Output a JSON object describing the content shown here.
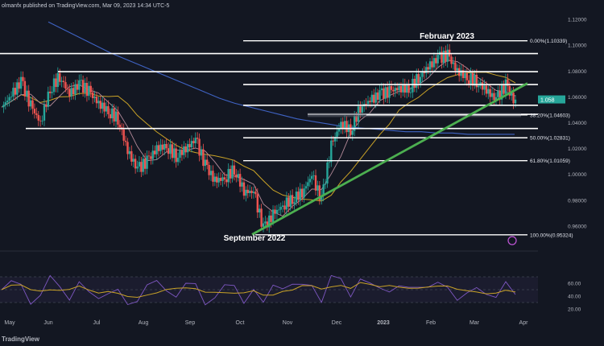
{
  "header": {
    "published_text": "olmanfx published on TradingView.com, Mar 09, 2023 14:34 UTC-5"
  },
  "footer": {
    "brand": "TradingView"
  },
  "colors": {
    "background": "#131722",
    "bull": "#26a69a",
    "bear": "#ef5350",
    "ma_pink": "#b58b9a",
    "ma_yellow": "#c9a227",
    "ma_blue": "#3f63c4",
    "trendline": "#4caf50",
    "level_line": "#ffffff",
    "rsi_line": "#7e57c2",
    "rsi_signal": "#c9a227"
  },
  "chart_data": {
    "type": "candlestick",
    "instrument_currency": "",
    "price_axis": {
      "ticks": [
        "1.12000",
        "1.10000",
        "1.08000",
        "1.06000",
        "1.04000",
        "1.02000",
        "1.00000",
        "0.98000",
        "0.96000"
      ],
      "current_price_label": "1.058",
      "ylim": [
        0.945,
        1.125
      ]
    },
    "time_axis": {
      "ticks": [
        "May",
        "Jun",
        "Jul",
        "Aug",
        "Sep",
        "Oct",
        "Nov",
        "Dec",
        "2023",
        "Feb",
        "Mar",
        "Apr"
      ]
    },
    "annotations": {
      "high_label": "February 2023",
      "low_label": "September 2022"
    },
    "fib_levels": [
      {
        "label": "0.00%(1.10339)",
        "value": 1.10339
      },
      {
        "label": "38.20%(1.04603)",
        "value": 1.04603
      },
      {
        "label": "50.00%(1.02831)",
        "value": 1.02831
      },
      {
        "label": "61.80%(1.01059)",
        "value": 1.01059
      },
      {
        "label": "100.00%(0.95324)",
        "value": 0.95324
      }
    ],
    "horizontal_levels": [
      1.0935,
      1.0795,
      1.0695,
      1.0535,
      1.0465,
      1.0355
    ],
    "trendline": {
      "from": {
        "date": "2022-09-28",
        "price": 0.9535
      },
      "to": {
        "date": "2023-03-20",
        "price": 1.0705
      }
    },
    "close_series_weekly": [
      1.052,
      1.061,
      1.072,
      1.053,
      1.04,
      1.066,
      1.076,
      1.062,
      1.07,
      1.064,
      1.055,
      1.049,
      1.043,
      1.018,
      1.004,
      1.01,
      1.02,
      1.022,
      1.014,
      1.02,
      1.027,
      1.007,
      0.995,
      0.997,
      1.004,
      0.987,
      0.986,
      0.958,
      0.969,
      0.976,
      0.981,
      0.986,
      0.999,
      0.98,
      1.022,
      1.04,
      1.034,
      1.052,
      1.057,
      1.062,
      1.064,
      1.067,
      1.066,
      1.075,
      1.083,
      1.09,
      1.092,
      1.08,
      1.075,
      1.072,
      1.065,
      1.058,
      1.069,
      1.055
    ],
    "rsi": {
      "ticks": [
        "60.00",
        "40.00",
        "20.00"
      ],
      "ylim": [
        10,
        75
      ]
    }
  }
}
